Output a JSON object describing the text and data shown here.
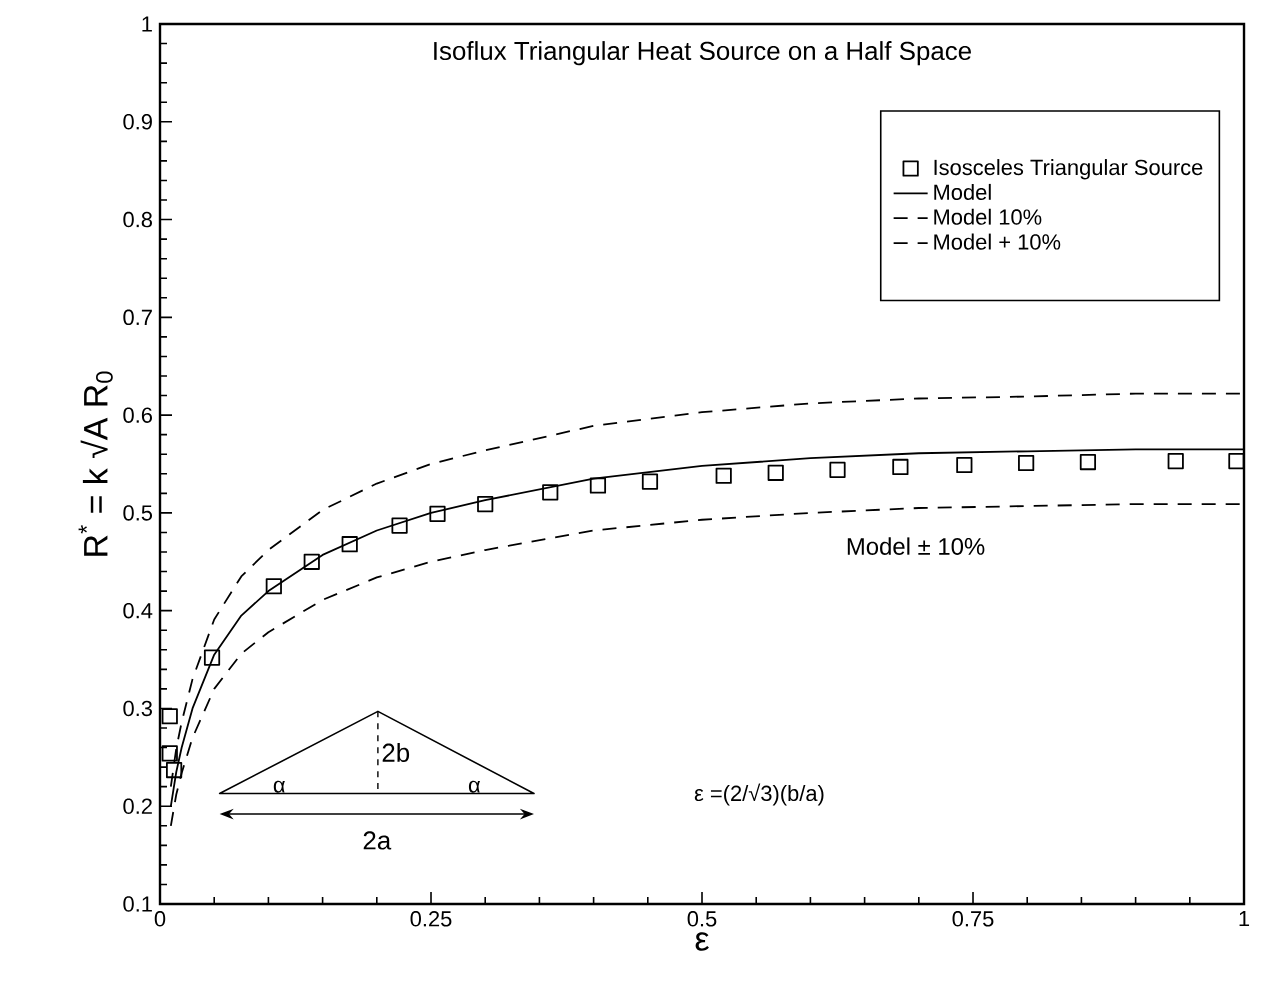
{
  "chart_data": {
    "type": "line",
    "title": "Isoflux Triangular Heat Source on a Half Space",
    "xlabel": "ε",
    "ylabel": "R$^{*}$ = k √A R$_{0}$",
    "xlim": [
      0,
      1
    ],
    "ylim": [
      0.1,
      1
    ],
    "xticks": [
      0,
      0.25,
      0.5,
      0.75,
      1
    ],
    "yticks": [
      0.1,
      0.2,
      0.3,
      0.4,
      0.5,
      0.6,
      0.7,
      0.8,
      0.9,
      1
    ],
    "legend": "top right",
    "series": [
      {
        "name": "Isosceles Triangular Source",
        "type": "scatter",
        "marker": "square",
        "color": "#000000",
        "x": [
          0.009,
          0.009,
          0.013,
          0.048,
          0.105,
          0.14,
          0.175,
          0.221,
          0.256,
          0.3,
          0.36,
          0.404,
          0.452,
          0.52,
          0.568,
          0.625,
          0.683,
          0.742,
          0.799,
          0.856,
          0.937,
          0.993
        ],
        "values": [
          0.292,
          0.254,
          0.237,
          0.352,
          0.425,
          0.45,
          0.468,
          0.487,
          0.499,
          0.509,
          0.521,
          0.528,
          0.532,
          0.538,
          0.541,
          0.544,
          0.547,
          0.549,
          0.551,
          0.552,
          0.553,
          0.553
        ]
      },
      {
        "name": "Model",
        "line_style": "solid",
        "color": "#000000",
        "x": [
          0.01,
          0.015,
          0.02,
          0.03,
          0.05,
          0.075,
          0.1,
          0.15,
          0.2,
          0.25,
          0.3,
          0.4,
          0.5,
          0.6,
          0.7,
          0.8,
          0.9,
          1.0
        ],
        "values": [
          0.2,
          0.235,
          0.26,
          0.3,
          0.355,
          0.395,
          0.42,
          0.457,
          0.482,
          0.5,
          0.513,
          0.535,
          0.548,
          0.556,
          0.561,
          0.563,
          0.565,
          0.565
        ]
      },
      {
        "name": "Model   10%",
        "line_style": "dashed",
        "color": "#000000",
        "x": [
          0.01,
          0.015,
          0.02,
          0.03,
          0.05,
          0.075,
          0.1,
          0.15,
          0.2,
          0.25,
          0.3,
          0.4,
          0.5,
          0.6,
          0.7,
          0.8,
          0.9,
          1.0
        ],
        "values": [
          0.18,
          0.212,
          0.234,
          0.27,
          0.32,
          0.356,
          0.378,
          0.411,
          0.434,
          0.45,
          0.462,
          0.482,
          0.493,
          0.5,
          0.505,
          0.507,
          0.509,
          0.509
        ]
      },
      {
        "name": "Model + 10%",
        "line_style": "dashed",
        "color": "#000000",
        "x": [
          0.01,
          0.015,
          0.02,
          0.03,
          0.05,
          0.075,
          0.1,
          0.15,
          0.2,
          0.25,
          0.3,
          0.4,
          0.5,
          0.6,
          0.7,
          0.8,
          0.9,
          1.0
        ],
        "values": [
          0.22,
          0.259,
          0.286,
          0.33,
          0.391,
          0.435,
          0.462,
          0.503,
          0.53,
          0.55,
          0.564,
          0.589,
          0.603,
          0.612,
          0.617,
          0.619,
          0.622,
          0.622
        ]
      }
    ],
    "annotations": [
      "Model ± 10%",
      "ε =(2/√3)(b/a)",
      "α",
      "α",
      "2b",
      "2a"
    ]
  }
}
